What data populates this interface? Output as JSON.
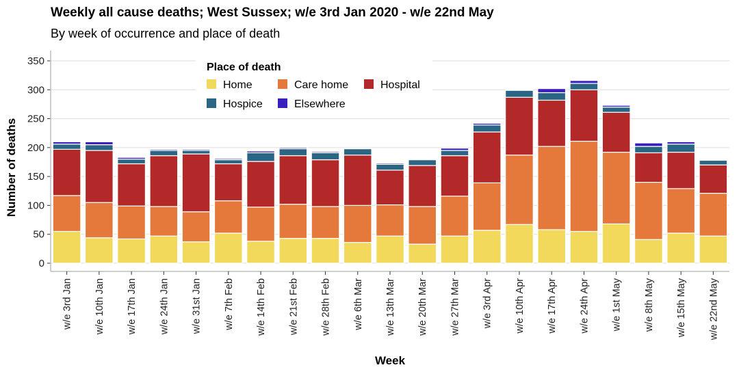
{
  "chart_data": {
    "type": "bar",
    "stacked": true,
    "title": "Weekly all cause deaths; West Sussex; w/e 3rd Jan 2020 - w/e 22nd May",
    "subtitle": "By week of occurrence and place of death",
    "xlabel": "Week",
    "ylabel": "Number of deaths",
    "ylim": [
      0,
      360
    ],
    "yticks": [
      0,
      50,
      100,
      150,
      200,
      250,
      300,
      350
    ],
    "grid": "horizontal",
    "legend_title": "Place of death",
    "legend_position": "top-left-inside",
    "categories": [
      "w/e 3rd Jan",
      "w/e 10th Jan",
      "w/e 17th Jan",
      "w/e 24th Jan",
      "w/e 31st Jan",
      "w/e 7th Feb",
      "w/e 14th Feb",
      "w/e 21st Feb",
      "w/e 28th Feb",
      "w/e 6th Mar",
      "w/e 13th Mar",
      "w/e 20th Mar",
      "w/e 27th Mar",
      "w/e 3rd Apr",
      "w/e 10th Apr",
      "w/e 17th Apr",
      "w/e 24th Apr",
      "w/e 1st May",
      "w/e 8th May",
      "w/e 15th May",
      "w/e 22nd May"
    ],
    "series": [
      {
        "name": "Home",
        "color": "#f2d95c",
        "values": [
          55,
          44,
          42,
          47,
          37,
          52,
          38,
          43,
          43,
          36,
          47,
          33,
          47,
          57,
          67,
          58,
          55,
          68,
          41,
          52,
          47
        ]
      },
      {
        "name": "Care home",
        "color": "#e5783b",
        "values": [
          62,
          61,
          57,
          51,
          52,
          56,
          59,
          59,
          55,
          64,
          54,
          65,
          69,
          82,
          120,
          144,
          156,
          124,
          99,
          77,
          74
        ]
      },
      {
        "name": "Hospital",
        "color": "#b3292a",
        "values": [
          80,
          90,
          73,
          88,
          100,
          64,
          79,
          84,
          81,
          87,
          60,
          71,
          70,
          88,
          100,
          80,
          89,
          69,
          51,
          63,
          49
        ]
      },
      {
        "name": "Hospice",
        "color": "#2a6584",
        "values": [
          9,
          10,
          8,
          9,
          6,
          7,
          15,
          12,
          12,
          11,
          10,
          10,
          9,
          12,
          12,
          13,
          11,
          9,
          11,
          14,
          8
        ]
      },
      {
        "name": "Elsewhere",
        "color": "#3a1fbe",
        "values": [
          4,
          5,
          3,
          2,
          2,
          2,
          3,
          2,
          2,
          1,
          2,
          1,
          4,
          3,
          1,
          7,
          5,
          3,
          6,
          4,
          1
        ]
      }
    ]
  }
}
